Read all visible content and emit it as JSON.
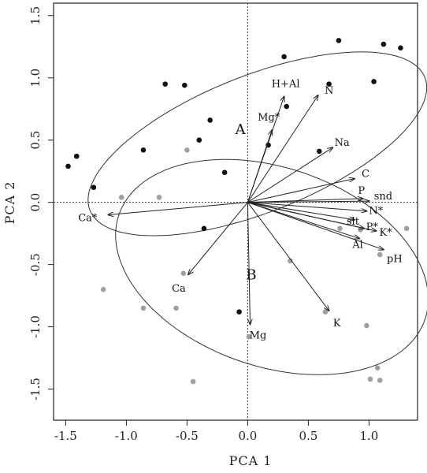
{
  "chart_data": {
    "type": "scatter",
    "title": "",
    "xlabel": "PCA 1",
    "ylabel": "PCA 2",
    "xlim": [
      -1.6,
      1.4
    ],
    "ylim": [
      -1.75,
      1.6
    ],
    "xticks": [
      -1.5,
      -1.0,
      -0.5,
      0.0,
      0.5,
      1.0
    ],
    "xtick_labels": [
      "-1.5",
      "-1.0",
      "-0.5",
      "0.0",
      "0.5",
      "1.0"
    ],
    "yticks": [
      -1.5,
      -1.0,
      -0.5,
      0.0,
      0.5,
      1.0,
      1.5
    ],
    "ytick_labels": [
      "-1.5",
      "-1.0",
      "-0.5",
      "0.0",
      "0.5",
      "1.0",
      "1.5"
    ],
    "reference_lines": {
      "x": 0,
      "y": 0,
      "style": "dotted"
    },
    "colors": {
      "group_a": "#111111",
      "group_b": "#a0a0a0",
      "vectors": "#222222",
      "frame": "#222222"
    },
    "series": [
      {
        "name": "A",
        "points": [
          [
            -1.48,
            0.29
          ],
          [
            -1.41,
            0.37
          ],
          [
            -1.27,
            0.12
          ],
          [
            -0.86,
            0.42
          ],
          [
            -0.68,
            0.95
          ],
          [
            -0.52,
            0.94
          ],
          [
            -0.4,
            0.5
          ],
          [
            -0.31,
            0.66
          ],
          [
            -0.19,
            0.24
          ],
          [
            -0.36,
            -0.21
          ],
          [
            0.17,
            0.46
          ],
          [
            0.3,
            1.17
          ],
          [
            0.32,
            0.77
          ],
          [
            0.59,
            0.41
          ],
          [
            0.67,
            0.95
          ],
          [
            0.75,
            1.3
          ],
          [
            1.04,
            0.97
          ],
          [
            1.12,
            1.27
          ],
          [
            1.26,
            1.24
          ],
          [
            -0.07,
            -0.88
          ]
        ]
      },
      {
        "name": "B",
        "points": [
          [
            -1.04,
            0.04
          ],
          [
            -0.73,
            0.04
          ],
          [
            -0.5,
            0.42
          ],
          [
            -0.53,
            -0.57
          ],
          [
            -1.19,
            -0.7
          ],
          [
            -0.86,
            -0.85
          ],
          [
            -0.59,
            -0.85
          ],
          [
            -0.45,
            -1.44
          ],
          [
            0.01,
            -1.08
          ],
          [
            0.35,
            -0.47
          ],
          [
            0.64,
            -0.88
          ],
          [
            0.98,
            -0.99
          ],
          [
            1.01,
            -1.42
          ],
          [
            1.07,
            -1.33
          ],
          [
            1.09,
            -1.43
          ],
          [
            1.09,
            -0.42
          ],
          [
            1.31,
            -0.21
          ],
          [
            0.76,
            -0.21
          ],
          [
            0.93,
            -0.22
          ]
        ]
      }
    ],
    "vectors": [
      {
        "label": "H+Al",
        "x": 0.3,
        "y": 0.85
      },
      {
        "label": "N",
        "x": 0.58,
        "y": 0.86
      },
      {
        "label": "Mg*",
        "x": 0.2,
        "y": 0.58
      },
      {
        "label": "Na",
        "x": 0.7,
        "y": 0.44
      },
      {
        "label": "C",
        "x": 0.88,
        "y": 0.19
      },
      {
        "label": "P",
        "x": 0.95,
        "y": 0.03
      },
      {
        "label": "snd",
        "x": 1.0,
        "y": 0.01
      },
      {
        "label": "N*",
        "x": 0.98,
        "y": -0.07
      },
      {
        "label": "slt",
        "x": 0.88,
        "y": -0.14
      },
      {
        "label": "P*",
        "x": 0.96,
        "y": -0.21
      },
      {
        "label": "K*",
        "x": 1.06,
        "y": -0.23
      },
      {
        "label": "Al",
        "x": 0.92,
        "y": -0.29
      },
      {
        "label": "pH",
        "x": 1.12,
        "y": -0.38
      },
      {
        "label": "K",
        "x": 0.67,
        "y": -0.87
      },
      {
        "label": "Mg",
        "x": 0.02,
        "y": -0.98
      },
      {
        "label": "Ca",
        "x": -0.49,
        "y": -0.58
      },
      {
        "label": "Ca*",
        "x": -1.15,
        "y": -0.1
      }
    ],
    "ellipses": [
      {
        "group": "A",
        "cx": 0.08,
        "cy": 0.47,
        "rx": 1.48,
        "ry": 0.55,
        "angle_deg": 21
      },
      {
        "group": "B",
        "cx": 0.2,
        "cy": -0.52,
        "rx": 1.33,
        "ry": 0.8,
        "angle_deg": -18
      }
    ],
    "annotations": [
      {
        "text": "A",
        "x": -0.06,
        "y": 0.55
      },
      {
        "text": "B",
        "x": 0.03,
        "y": -0.62
      }
    ]
  }
}
